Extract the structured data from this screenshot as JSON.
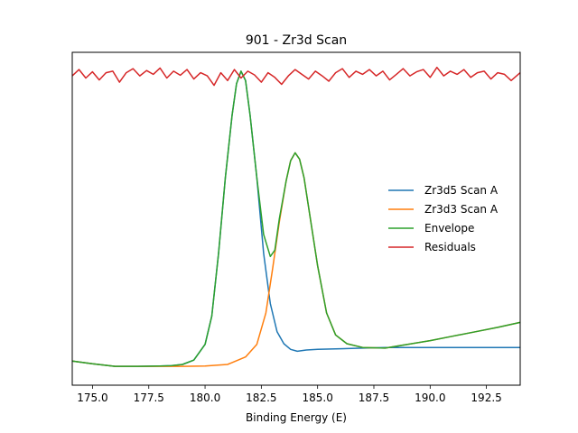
{
  "chart_data": {
    "type": "line",
    "title": "901 - Zr3d Scan",
    "xlabel": "Binding Energy (E)",
    "ylabel": "",
    "xlim": [
      174.1,
      194.0
    ],
    "ylim": [
      -0.06,
      1.0
    ],
    "grid": false,
    "legend_placement": "center-right",
    "x_ticks": [
      175.0,
      177.5,
      180.0,
      182.5,
      185.0,
      187.5,
      190.0,
      192.5
    ],
    "x_tick_labels": [
      "175.0",
      "177.5",
      "180.0",
      "182.5",
      "185.0",
      "187.5",
      "190.0",
      "192.5"
    ],
    "series": [
      {
        "name": "Zr3d5 Scan A",
        "color": "#1f77b4",
        "x": [
          174.1,
          175.0,
          176.0,
          177.0,
          178.0,
          178.5,
          179.0,
          179.5,
          180.0,
          180.3,
          180.6,
          180.9,
          181.2,
          181.4,
          181.6,
          181.8,
          182.0,
          182.3,
          182.6,
          182.9,
          183.2,
          183.5,
          183.8,
          184.1,
          184.5,
          185.0,
          186.0,
          187.0,
          188.0,
          189.0,
          190.0,
          191.0,
          192.0,
          193.0,
          194.0
        ],
        "y": [
          0.017,
          0.008,
          0.0,
          0.0,
          0.001,
          0.002,
          0.006,
          0.02,
          0.07,
          0.16,
          0.36,
          0.6,
          0.8,
          0.9,
          0.94,
          0.91,
          0.8,
          0.6,
          0.36,
          0.2,
          0.11,
          0.072,
          0.054,
          0.048,
          0.052,
          0.054,
          0.056,
          0.058,
          0.06,
          0.06,
          0.06,
          0.06,
          0.06,
          0.06,
          0.06
        ]
      },
      {
        "name": "Zr3d3 Scan A",
        "color": "#ff7f0e",
        "x": [
          174.1,
          175.0,
          176.0,
          177.0,
          178.0,
          179.0,
          180.0,
          181.0,
          181.8,
          182.3,
          182.7,
          183.0,
          183.3,
          183.6,
          183.8,
          184.0,
          184.2,
          184.4,
          184.7,
          185.0,
          185.4,
          185.8,
          186.3,
          187.0,
          188.0,
          189.0,
          190.0,
          191.0,
          192.0,
          193.0,
          194.0
        ],
        "y": [
          0.017,
          0.008,
          0.0,
          0.0,
          0.0,
          0.0,
          0.001,
          0.006,
          0.03,
          0.07,
          0.17,
          0.31,
          0.46,
          0.59,
          0.655,
          0.68,
          0.66,
          0.6,
          0.46,
          0.32,
          0.17,
          0.1,
          0.072,
          0.06,
          0.058,
          0.07,
          0.082,
          0.096,
          0.11,
          0.124,
          0.14
        ]
      },
      {
        "name": "Envelope",
        "color": "#2ca02c",
        "x": [
          174.1,
          175.0,
          176.0,
          177.0,
          178.0,
          178.5,
          179.0,
          179.5,
          180.0,
          180.3,
          180.6,
          180.9,
          181.2,
          181.4,
          181.6,
          181.8,
          182.0,
          182.3,
          182.6,
          182.9,
          183.1,
          183.3,
          183.6,
          183.8,
          184.0,
          184.2,
          184.4,
          184.7,
          185.0,
          185.4,
          185.8,
          186.3,
          187.0,
          188.0,
          189.0,
          190.0,
          191.0,
          192.0,
          193.0,
          194.0
        ],
        "y": [
          0.017,
          0.008,
          0.0,
          0.0,
          0.001,
          0.002,
          0.006,
          0.02,
          0.07,
          0.16,
          0.36,
          0.6,
          0.8,
          0.9,
          0.94,
          0.91,
          0.8,
          0.6,
          0.42,
          0.35,
          0.37,
          0.47,
          0.59,
          0.655,
          0.68,
          0.66,
          0.6,
          0.46,
          0.32,
          0.17,
          0.1,
          0.072,
          0.06,
          0.058,
          0.07,
          0.082,
          0.096,
          0.11,
          0.124,
          0.14
        ]
      },
      {
        "name": "Residuals",
        "color": "#d62728",
        "x": [
          174.1,
          174.4,
          174.7,
          175.0,
          175.3,
          175.6,
          175.9,
          176.2,
          176.5,
          176.8,
          177.1,
          177.4,
          177.7,
          178.0,
          178.3,
          178.6,
          178.9,
          179.2,
          179.5,
          179.8,
          180.1,
          180.4,
          180.7,
          181.0,
          181.3,
          181.6,
          181.9,
          182.2,
          182.5,
          182.8,
          183.1,
          183.4,
          183.7,
          184.0,
          184.3,
          184.6,
          184.9,
          185.2,
          185.5,
          185.8,
          186.1,
          186.4,
          186.7,
          187.0,
          187.3,
          187.6,
          187.9,
          188.2,
          188.5,
          188.8,
          189.1,
          189.4,
          189.7,
          190.0,
          190.3,
          190.6,
          190.9,
          191.2,
          191.5,
          191.8,
          192.1,
          192.4,
          192.7,
          193.0,
          193.3,
          193.6,
          194.0
        ],
        "y": [
          0.925,
          0.945,
          0.918,
          0.938,
          0.912,
          0.935,
          0.94,
          0.905,
          0.935,
          0.948,
          0.925,
          0.942,
          0.93,
          0.95,
          0.918,
          0.94,
          0.927,
          0.945,
          0.915,
          0.935,
          0.925,
          0.895,
          0.935,
          0.91,
          0.945,
          0.918,
          0.94,
          0.928,
          0.905,
          0.935,
          0.92,
          0.898,
          0.925,
          0.945,
          0.93,
          0.915,
          0.94,
          0.925,
          0.908,
          0.935,
          0.948,
          0.92,
          0.94,
          0.93,
          0.945,
          0.925,
          0.94,
          0.912,
          0.93,
          0.948,
          0.925,
          0.938,
          0.945,
          0.92,
          0.952,
          0.925,
          0.94,
          0.93,
          0.945,
          0.92,
          0.935,
          0.94,
          0.915,
          0.935,
          0.93,
          0.91,
          0.935
        ]
      }
    ]
  }
}
